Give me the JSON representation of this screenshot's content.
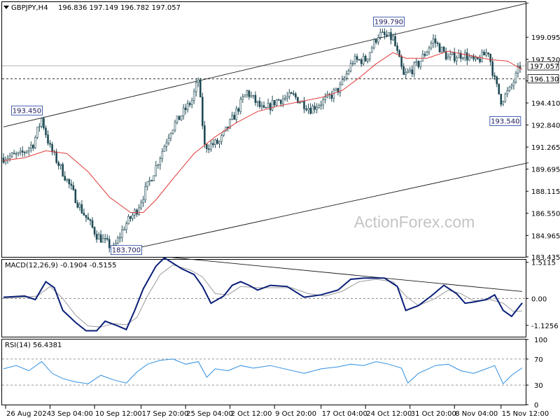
{
  "header": {
    "symbol_label": "GBPJPY,H4",
    "ohlc_text": "196.836 197.149 196.782 197.057"
  },
  "watermark": "ActionForex.com",
  "colors": {
    "candle": "#1f4a54",
    "moving_average": "#e23a3a",
    "macd_line": "#0a1f78",
    "macd_signal": "#9a9a9a",
    "rsi_line": "#2f8fe0",
    "trend_lines": "#1a1a1a",
    "level_box_border": "#1a3aa0"
  },
  "chart_data": [
    {
      "type": "candlestick",
      "title": "GBPJPY,H4",
      "ylim": [
        183.435,
        201.6
      ],
      "y_ticks": [
        {
          "value": 183.435,
          "label": "183.435"
        },
        {
          "value": 184.965,
          "label": "184.965"
        },
        {
          "value": 186.55,
          "label": "186.550"
        },
        {
          "value": 188.115,
          "label": "188.115"
        },
        {
          "value": 189.695,
          "label": "189.695"
        },
        {
          "value": 191.265,
          "label": "191.265"
        },
        {
          "value": 192.84,
          "label": "192.840"
        },
        {
          "value": 194.41,
          "label": "194.410"
        },
        {
          "value": 195.985,
          "label": "195.985"
        },
        {
          "value": 197.52,
          "label": "197.520"
        },
        {
          "value": 199.095,
          "label": "199.095"
        }
      ],
      "x_ticks": [
        {
          "bar": 1,
          "label": "26 Aug 2024"
        },
        {
          "bar": 22,
          "label": "3 Sep 04:00"
        },
        {
          "bar": 43,
          "label": "10 Sep 12:00"
        },
        {
          "bar": 65,
          "label": "17 Sep 20:00"
        },
        {
          "bar": 86,
          "label": "25 Sep 04:00"
        },
        {
          "bar": 107,
          "label": "2 Oct 12:00"
        },
        {
          "bar": 128,
          "label": "9 Oct 20:00"
        },
        {
          "bar": 150,
          "label": "17 Oct 04:00"
        },
        {
          "bar": 171,
          "label": "24 Oct 12:00"
        },
        {
          "bar": 192,
          "label": "31 Oct 20:00"
        },
        {
          "bar": 213,
          "label": "8 Nov 04:00"
        },
        {
          "bar": 235,
          "label": "15 Nov 12:00"
        }
      ],
      "bar_count": 245,
      "price_path": [
        [
          0,
          190.5
        ],
        [
          9,
          190.7
        ],
        [
          15,
          191.5
        ],
        [
          19,
          193.3
        ],
        [
          23,
          191.2
        ],
        [
          30,
          189.2
        ],
        [
          37,
          187.0
        ],
        [
          45,
          185.0
        ],
        [
          53,
          184.0
        ],
        [
          58,
          185.6
        ],
        [
          64,
          186.8
        ],
        [
          72,
          189.5
        ],
        [
          80,
          192.5
        ],
        [
          90,
          194.6
        ],
        [
          93,
          196.1
        ],
        [
          96,
          191.3
        ],
        [
          103,
          191.6
        ],
        [
          110,
          193.5
        ],
        [
          116,
          195.2
        ],
        [
          124,
          193.8
        ],
        [
          130,
          194.6
        ],
        [
          138,
          194.9
        ],
        [
          146,
          194.0
        ],
        [
          154,
          194.7
        ],
        [
          160,
          195.5
        ],
        [
          166,
          197.4
        ],
        [
          172,
          197.5
        ],
        [
          178,
          199.3
        ],
        [
          185,
          199.0
        ],
        [
          190,
          196.3
        ],
        [
          197,
          197.2
        ],
        [
          204,
          198.9
        ],
        [
          211,
          197.6
        ],
        [
          218,
          197.9
        ],
        [
          224,
          197.3
        ],
        [
          230,
          198.1
        ],
        [
          233,
          196.0
        ],
        [
          236,
          194.6
        ],
        [
          240,
          195.3
        ],
        [
          243,
          196.3
        ],
        [
          245,
          197.06
        ]
      ],
      "moving_average_path": [
        [
          0,
          190.3
        ],
        [
          10,
          190.5
        ],
        [
          20,
          191.0
        ],
        [
          30,
          190.8
        ],
        [
          40,
          189.5
        ],
        [
          50,
          187.7
        ],
        [
          60,
          186.6
        ],
        [
          66,
          186.6
        ],
        [
          72,
          187.5
        ],
        [
          80,
          189.0
        ],
        [
          90,
          190.8
        ],
        [
          100,
          192.0
        ],
        [
          110,
          193.0
        ],
        [
          120,
          193.8
        ],
        [
          130,
          194.2
        ],
        [
          140,
          194.5
        ],
        [
          150,
          194.8
        ],
        [
          160,
          195.3
        ],
        [
          168,
          196.2
        ],
        [
          176,
          197.2
        ],
        [
          184,
          198.0
        ],
        [
          190,
          197.6
        ],
        [
          200,
          197.6
        ],
        [
          210,
          198.1
        ],
        [
          220,
          197.8
        ],
        [
          230,
          197.5
        ],
        [
          238,
          197.4
        ],
        [
          245,
          196.8
        ]
      ],
      "trend_lines": [
        {
          "from": {
            "bar": 0,
            "price": 192.7
          },
          "to": {
            "bar": 248,
            "price": 201.55
          }
        },
        {
          "from": {
            "bar": 58,
            "price": 183.9
          },
          "to": {
            "bar": 248,
            "price": 190.15
          }
        }
      ],
      "horizontal_levels": [
        {
          "value": 197.057,
          "label": "197.057",
          "style": "solid"
        },
        {
          "value": 196.13,
          "label": "196.130",
          "style": "dashed"
        }
      ],
      "annotations": [
        {
          "label": "193.450",
          "bar": 19,
          "price": 193.45
        },
        {
          "label": "183.700",
          "bar": 58,
          "price": 183.7
        },
        {
          "label": "199.790",
          "bar": 182,
          "price": 199.79
        },
        {
          "label": "193.540",
          "bar": 237,
          "price": 193.54
        }
      ]
    },
    {
      "type": "line",
      "title": "MACD(12,26,9) -0.1904 -0.5155",
      "ylim": [
        -1.6,
        1.62
      ],
      "y_ticks": [
        {
          "value": 1.5115,
          "label": "1.5115"
        },
        {
          "value": 0.0,
          "label": "0.00"
        },
        {
          "value": -1.1256,
          "label": "-1.1256"
        }
      ],
      "zero_line": true,
      "trend_line": {
        "from": {
          "bar": 79,
          "value": 1.72
        },
        "to": {
          "bar": 245,
          "value": 0.29
        }
      },
      "series": [
        {
          "role": "macd",
          "values": [
            [
              0,
              0.05
            ],
            [
              10,
              0.1
            ],
            [
              15,
              -0.05
            ],
            [
              20,
              0.7
            ],
            [
              24,
              0.45
            ],
            [
              28,
              -0.5
            ],
            [
              34,
              -1.0
            ],
            [
              39,
              -1.35
            ],
            [
              44,
              -1.35
            ],
            [
              48,
              -0.95
            ],
            [
              54,
              -1.15
            ],
            [
              58,
              -1.3
            ],
            [
              62,
              -0.5
            ],
            [
              66,
              0.4
            ],
            [
              72,
              1.35
            ],
            [
              76,
              1.7
            ],
            [
              84,
              1.25
            ],
            [
              90,
              1.0
            ],
            [
              94,
              0.5
            ],
            [
              98,
              -0.2
            ],
            [
              104,
              0.1
            ],
            [
              108,
              0.55
            ],
            [
              112,
              0.7
            ],
            [
              116,
              0.55
            ],
            [
              120,
              0.35
            ],
            [
              126,
              0.55
            ],
            [
              134,
              0.5
            ],
            [
              142,
              0.05
            ],
            [
              150,
              0.15
            ],
            [
              158,
              0.35
            ],
            [
              164,
              0.8
            ],
            [
              170,
              0.85
            ],
            [
              180,
              0.85
            ],
            [
              186,
              0.5
            ],
            [
              190,
              -0.5
            ],
            [
              196,
              -0.3
            ],
            [
              202,
              0.1
            ],
            [
              208,
              0.55
            ],
            [
              214,
              0.2
            ],
            [
              218,
              -0.2
            ],
            [
              222,
              -0.15
            ],
            [
              228,
              -0.05
            ],
            [
              232,
              0.15
            ],
            [
              236,
              -0.5
            ],
            [
              240,
              -0.75
            ],
            [
              245,
              -0.19
            ]
          ]
        },
        {
          "role": "signal",
          "values": [
            [
              0,
              0.0
            ],
            [
              10,
              0.05
            ],
            [
              16,
              0.1
            ],
            [
              22,
              0.5
            ],
            [
              28,
              0.0
            ],
            [
              34,
              -0.7
            ],
            [
              40,
              -1.15
            ],
            [
              46,
              -1.2
            ],
            [
              52,
              -1.05
            ],
            [
              58,
              -1.1
            ],
            [
              63,
              -0.8
            ],
            [
              68,
              0.1
            ],
            [
              74,
              1.0
            ],
            [
              80,
              1.4
            ],
            [
              88,
              1.2
            ],
            [
              94,
              0.9
            ],
            [
              100,
              0.2
            ],
            [
              106,
              0.15
            ],
            [
              112,
              0.5
            ],
            [
              120,
              0.45
            ],
            [
              128,
              0.45
            ],
            [
              136,
              0.45
            ],
            [
              144,
              0.2
            ],
            [
              152,
              0.1
            ],
            [
              160,
              0.3
            ],
            [
              168,
              0.7
            ],
            [
              176,
              0.8
            ],
            [
              184,
              0.7
            ],
            [
              190,
              0.1
            ],
            [
              196,
              -0.3
            ],
            [
              204,
              0.0
            ],
            [
              210,
              0.35
            ],
            [
              216,
              0.2
            ],
            [
              222,
              -0.1
            ],
            [
              230,
              -0.05
            ],
            [
              236,
              -0.2
            ],
            [
              241,
              -0.55
            ],
            [
              245,
              -0.52
            ]
          ]
        }
      ]
    },
    {
      "type": "line",
      "title": "RSI(14) 56.4381",
      "ylim": [
        0,
        100
      ],
      "y_ticks": [
        {
          "value": 100,
          "label": "100"
        },
        {
          "value": 70,
          "label": "70"
        },
        {
          "value": 30,
          "label": "30"
        },
        {
          "value": 0,
          "label": "0"
        }
      ],
      "reference_levels": [
        70,
        30
      ],
      "series": [
        {
          "role": "rsi",
          "values": [
            [
              0,
              55
            ],
            [
              6,
              60
            ],
            [
              12,
              52
            ],
            [
              18,
              66
            ],
            [
              23,
              48
            ],
            [
              28,
              40
            ],
            [
              34,
              35
            ],
            [
              40,
              32
            ],
            [
              46,
              45
            ],
            [
              52,
              38
            ],
            [
              58,
              33
            ],
            [
              63,
              50
            ],
            [
              68,
              62
            ],
            [
              74,
              68
            ],
            [
              80,
              70
            ],
            [
              86,
              62
            ],
            [
              92,
              66
            ],
            [
              96,
              42
            ],
            [
              100,
              55
            ],
            [
              106,
              52
            ],
            [
              112,
              60
            ],
            [
              118,
              56
            ],
            [
              126,
              60
            ],
            [
              134,
              54
            ],
            [
              142,
              48
            ],
            [
              150,
              55
            ],
            [
              158,
              58
            ],
            [
              164,
              62
            ],
            [
              170,
              60
            ],
            [
              176,
              66
            ],
            [
              182,
              62
            ],
            [
              188,
              56
            ],
            [
              191,
              33
            ],
            [
              196,
              48
            ],
            [
              204,
              60
            ],
            [
              210,
              62
            ],
            [
              216,
              52
            ],
            [
              222,
              48
            ],
            [
              228,
              55
            ],
            [
              232,
              60
            ],
            [
              236,
              32
            ],
            [
              240,
              45
            ],
            [
              245,
              56.4
            ]
          ]
        }
      ]
    }
  ]
}
